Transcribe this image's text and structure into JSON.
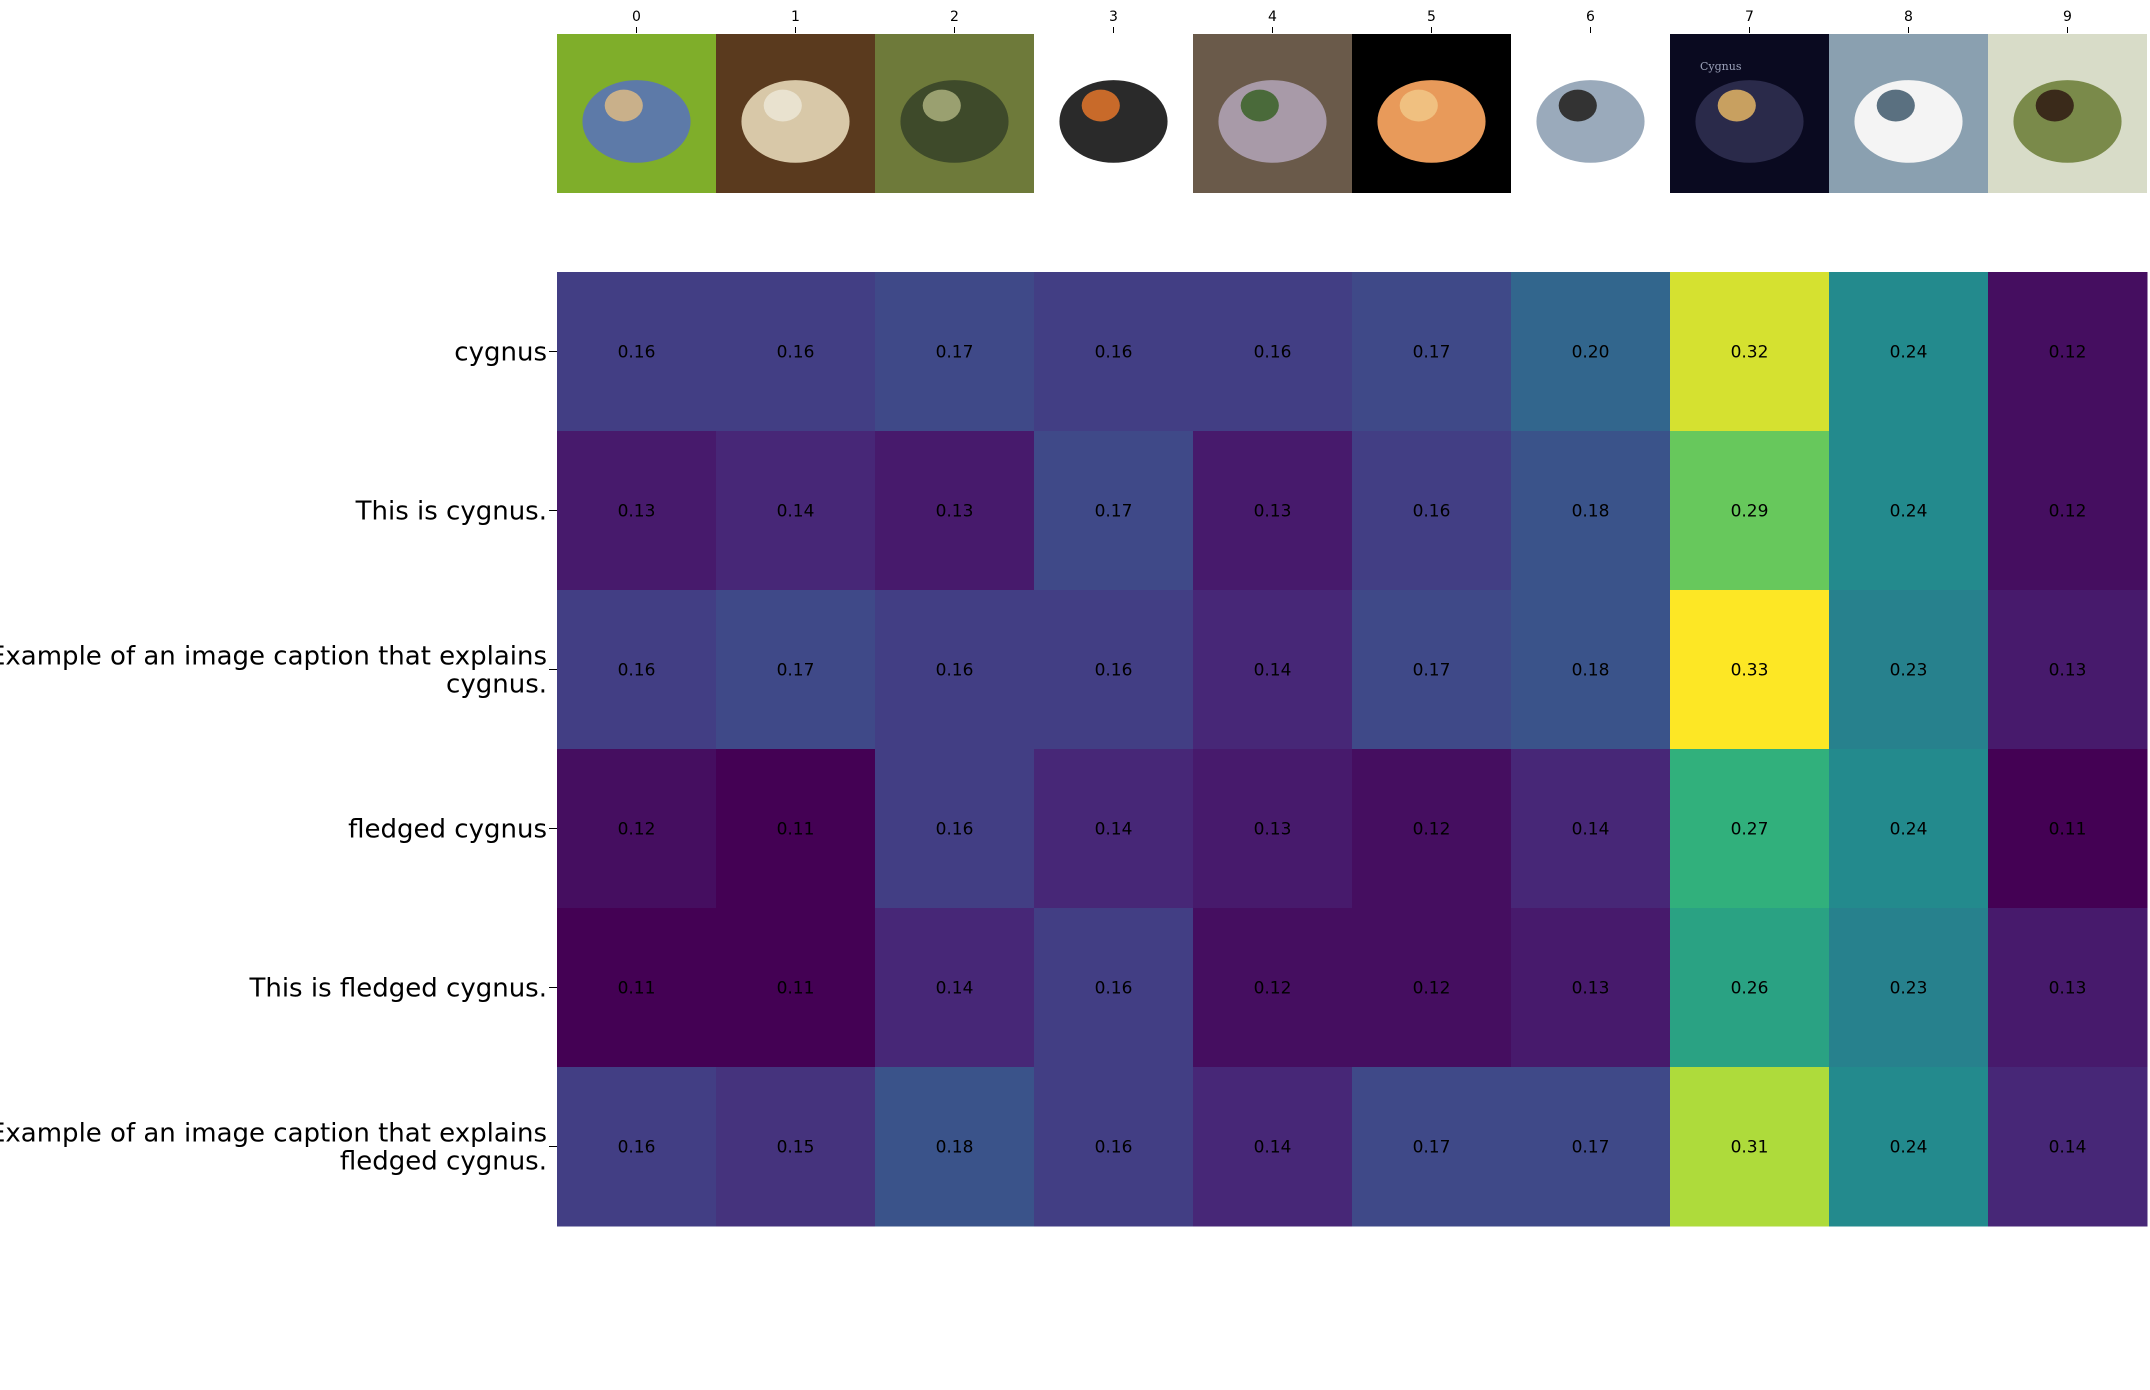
{
  "chart_data": {
    "type": "heatmap",
    "title": "",
    "xlabel": "",
    "ylabel": "",
    "grid": false,
    "legend": "none",
    "colormap": "viridis",
    "value_range": [
      0.11,
      0.33
    ],
    "x": [
      "0",
      "1",
      "2",
      "3",
      "4",
      "5",
      "6",
      "7",
      "8",
      "9"
    ],
    "y": [
      "cygnus",
      "This is cygnus.",
      "Example of an image caption that explains cygnus.",
      "fledged cygnus",
      "This is fledged cygnus.",
      "Example of an image caption that explains fledged cygnus."
    ],
    "values": [
      [
        0.16,
        0.16,
        0.17,
        0.16,
        0.16,
        0.17,
        0.2,
        0.32,
        0.24,
        0.12
      ],
      [
        0.13,
        0.14,
        0.13,
        0.17,
        0.13,
        0.16,
        0.18,
        0.29,
        0.24,
        0.12
      ],
      [
        0.16,
        0.17,
        0.16,
        0.16,
        0.14,
        0.17,
        0.18,
        0.33,
        0.23,
        0.13
      ],
      [
        0.12,
        0.11,
        0.16,
        0.14,
        0.13,
        0.12,
        0.14,
        0.27,
        0.24,
        0.11
      ],
      [
        0.11,
        0.11,
        0.14,
        0.16,
        0.12,
        0.12,
        0.13,
        0.26,
        0.23,
        0.13
      ],
      [
        0.16,
        0.15,
        0.18,
        0.16,
        0.14,
        0.17,
        0.17,
        0.31,
        0.24,
        0.14
      ]
    ],
    "image_thumbnails": [
      {
        "icon": "fish-in-leaves-photo",
        "colors": [
          "#7fae2a",
          "#5d7aa8",
          "#c9b08a"
        ]
      },
      {
        "icon": "skeleton-specimen-photo",
        "colors": [
          "#5a3a1e",
          "#d8c8a8",
          "#e9e2cf"
        ]
      },
      {
        "icon": "wading-bird-reeds-photo",
        "colors": [
          "#6e7a3a",
          "#3e4a2a",
          "#9aa070"
        ]
      },
      {
        "icon": "squid-photo",
        "colors": [
          "#ffffff",
          "#2a2a2a",
          "#c86a2a"
        ]
      },
      {
        "icon": "bracket-fungus-photo",
        "colors": [
          "#6a5a4a",
          "#a89aa8",
          "#4a6a3a"
        ]
      },
      {
        "icon": "seahorse-photo",
        "colors": [
          "#000000",
          "#e89a5a",
          "#f0c080"
        ]
      },
      {
        "icon": "fish-drawing",
        "colors": [
          "#ffffff",
          "#9aaabb",
          "#333333"
        ]
      },
      {
        "icon": "night-sky-cygnus-photo",
        "colors": [
          "#0a0a20",
          "#2a2a4a",
          "#c8a060"
        ],
        "caption": "Cygnus"
      },
      {
        "icon": "swan-photo",
        "colors": [
          "#8aa0b0",
          "#f4f4f4",
          "#5a7080"
        ]
      },
      {
        "icon": "bird-with-nest-photo",
        "colors": [
          "#d8dcc8",
          "#7a8a4a",
          "#3a2a1a"
        ]
      }
    ]
  }
}
